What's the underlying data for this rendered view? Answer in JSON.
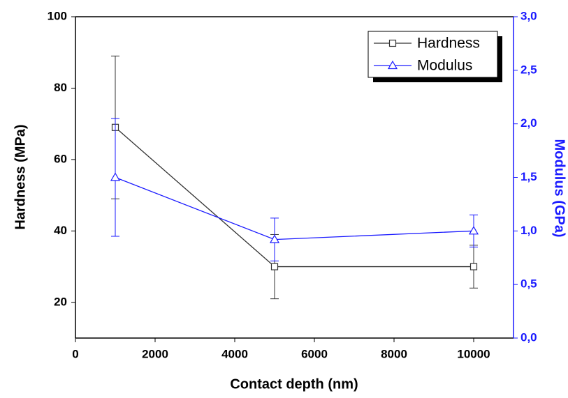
{
  "chart_data": {
    "type": "line",
    "xlabel": "Contact depth (nm)",
    "ylabel": "Hardness (MPa)",
    "y2label": "Modulus (GPa)",
    "x": [
      1000,
      5000,
      10000
    ],
    "series": [
      {
        "name": "Hardness",
        "color": "#333333",
        "marker": "square",
        "values": [
          69,
          30,
          30
        ],
        "errors": [
          20,
          9,
          6
        ]
      },
      {
        "name": "Modulus",
        "color": "#1a1aff",
        "marker": "triangle",
        "axis": "y2",
        "values": [
          1.5,
          0.92,
          1.0
        ],
        "errors": [
          0.55,
          0.2,
          0.15
        ]
      }
    ],
    "xlim": [
      0,
      11000
    ],
    "xticks": [
      0,
      2000,
      4000,
      6000,
      8000,
      10000
    ],
    "ylim": [
      10,
      100
    ],
    "yticks": [
      20,
      40,
      60,
      80,
      100
    ],
    "y2lim": [
      0,
      3
    ],
    "y2ticks": [
      {
        "value": 0,
        "label": "0,0"
      },
      {
        "value": 0.5,
        "label": "0,5"
      },
      {
        "value": 1,
        "label": "1,0"
      },
      {
        "value": 1.5,
        "label": "1,5"
      },
      {
        "value": 2,
        "label": "2,0"
      },
      {
        "value": 2.5,
        "label": "2,5"
      },
      {
        "value": 3,
        "label": "3,0"
      }
    ],
    "y2color": "#1a1aff",
    "legend": "top-right"
  }
}
